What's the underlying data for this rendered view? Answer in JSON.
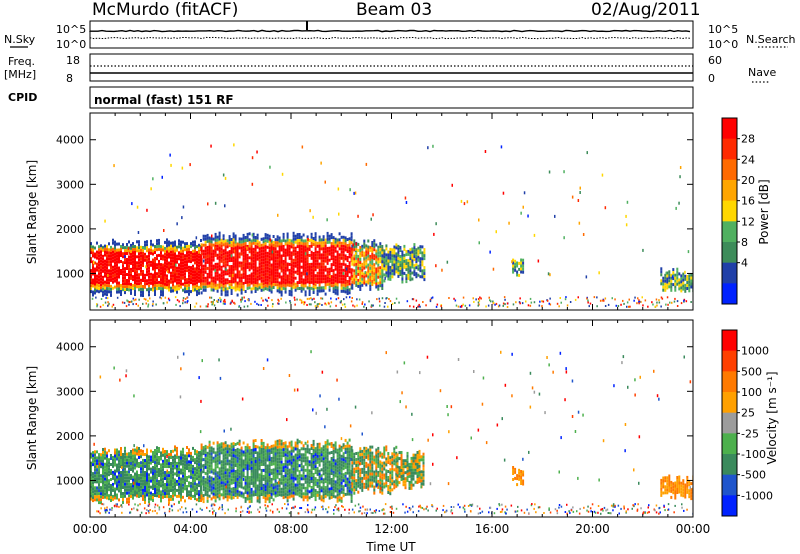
{
  "header": {
    "title": "McMurdo (fitACF)",
    "beam": "Beam 03",
    "date": "02/Aug/2011"
  },
  "top_panels": {
    "nsky_label": "N.Sky",
    "nsearch_label": "N.Search",
    "noise_ticks": [
      "10^5",
      "10^0"
    ],
    "freq_label": "Freq.",
    "freq_unit": "[MHz]",
    "freq_ticks": [
      "18",
      "8"
    ],
    "nave_label": "Nave",
    "nave_ticks": [
      "60",
      "0"
    ],
    "cpid_label": "CPID",
    "cpid_text": "normal (fast) 151 RF"
  },
  "chart_data": [
    {
      "type": "heatmap",
      "name": "power",
      "title": "",
      "xlabel": "Time UT",
      "ylabel": "Slant Range [km]",
      "xlim": [
        0,
        24
      ],
      "ylim": [
        180,
        4600
      ],
      "x_ticks": [
        "00:00",
        "04:00",
        "08:00",
        "12:00",
        "16:00",
        "20:00",
        "00:00"
      ],
      "y_ticks": [
        1000,
        2000,
        3000,
        4000
      ],
      "colorbar": {
        "label": "Power [dB]",
        "ticks": [
          "28",
          "24",
          "20",
          "16",
          "12",
          "8",
          "4"
        ],
        "colors": [
          "#0022ff",
          "#2040a8",
          "#3d8c5a",
          "#50b060",
          "#ffd700",
          "#ffa500",
          "#ff6a00",
          "#ff2a00",
          "#ff0000"
        ]
      },
      "echo_regions": [
        {
          "t0": 0.0,
          "t1": 4.4,
          "r0": 600,
          "r1": 1700,
          "level": "strong"
        },
        {
          "t0": 4.4,
          "t1": 10.4,
          "r0": 600,
          "r1": 1850,
          "level": "strong"
        },
        {
          "t0": 10.4,
          "t1": 11.6,
          "r0": 700,
          "r1": 1700,
          "level": "medium"
        },
        {
          "t0": 11.6,
          "t1": 13.3,
          "r0": 900,
          "r1": 1600,
          "level": "weak"
        },
        {
          "t0": 16.8,
          "t1": 17.2,
          "r0": 1000,
          "r1": 1300,
          "level": "weak"
        },
        {
          "t0": 22.7,
          "t1": 24.0,
          "r0": 650,
          "r1": 1050,
          "level": "weak"
        }
      ]
    },
    {
      "type": "heatmap",
      "name": "velocity",
      "title": "",
      "xlabel": "Time UT",
      "ylabel": "Slant Range [km]",
      "xlim": [
        0,
        24
      ],
      "ylim": [
        180,
        4600
      ],
      "x_ticks": [
        "00:00",
        "04:00",
        "08:00",
        "12:00",
        "16:00",
        "20:00",
        "00:00"
      ],
      "y_ticks": [
        1000,
        2000,
        3000,
        4000
      ],
      "colorbar": {
        "label": "Velocity [m s⁻¹]",
        "ticks": [
          "1000",
          "500",
          "100",
          "25",
          "-25",
          "-100",
          "-500",
          "-1000"
        ],
        "colors": [
          "#0022ff",
          "#1f55cc",
          "#3a8a5c",
          "#4db04d",
          "#9c9c9c",
          "#ffa000",
          "#ff7a00",
          "#ff4000",
          "#ff0000"
        ]
      },
      "echo_regions": [
        {
          "t0": 0.0,
          "t1": 4.4,
          "r0": 600,
          "r1": 1700,
          "level": "green"
        },
        {
          "t0": 4.4,
          "t1": 10.4,
          "r0": 600,
          "r1": 1850,
          "level": "green"
        },
        {
          "t0": 10.4,
          "t1": 12.2,
          "r0": 800,
          "r1": 1700,
          "level": "mixed"
        },
        {
          "t0": 12.2,
          "t1": 13.3,
          "r0": 900,
          "r1": 1600,
          "level": "mixed"
        },
        {
          "t0": 16.8,
          "t1": 17.2,
          "r0": 1000,
          "r1": 1300,
          "level": "orange"
        },
        {
          "t0": 22.7,
          "t1": 24.0,
          "r0": 650,
          "r1": 1050,
          "level": "orange"
        }
      ]
    }
  ]
}
